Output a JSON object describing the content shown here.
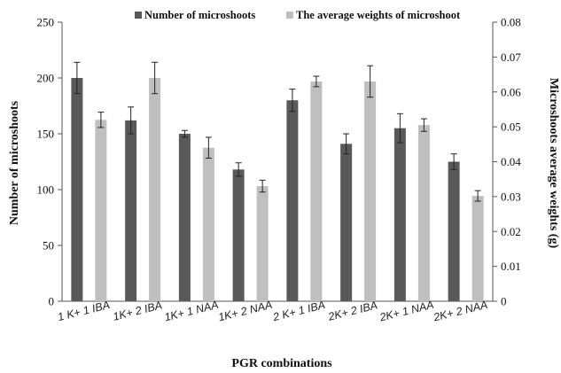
{
  "chart_data": {
    "type": "bar",
    "categories": [
      "1 K+ 1 IBA",
      "1K+ 2 IBA",
      "1K+ 1 NAA",
      "1K+ 2 NAA",
      "2 K+ 1 IBA",
      "2K+ 2 IBA",
      "2K+ 1 NAA",
      "2K+ 2 NAA"
    ],
    "series": [
      {
        "name": "Number of microshoots",
        "axis": "left",
        "color": "#595959",
        "values": [
          200,
          162,
          150,
          118,
          180,
          141,
          155,
          125
        ],
        "errors": [
          14,
          12,
          3,
          6,
          10,
          9,
          13,
          7
        ]
      },
      {
        "name": "The average weights of microshoot",
        "axis": "right",
        "color": "#bfbfbf",
        "values": [
          0.052,
          0.064,
          0.044,
          0.033,
          0.063,
          0.063,
          0.0505,
          0.0302
        ],
        "errors": [
          0.0022,
          0.0045,
          0.003,
          0.0017,
          0.0015,
          0.0045,
          0.0018,
          0.0015
        ]
      }
    ],
    "xlabel": "PGR combinations",
    "ylabel": "Number of microshoots",
    "y2label": "Microshoots average weights (g)",
    "ylim": [
      0,
      250
    ],
    "y2lim": [
      0,
      0.08
    ],
    "yticks": [
      "0",
      "50",
      "100",
      "150",
      "200",
      "250"
    ],
    "y2ticks": [
      "0",
      "0.01",
      "0.02",
      "0.03",
      "0.04",
      "0.05",
      "0.06",
      "0.07",
      "0.08"
    ],
    "legend_position": "top",
    "grid": false
  }
}
